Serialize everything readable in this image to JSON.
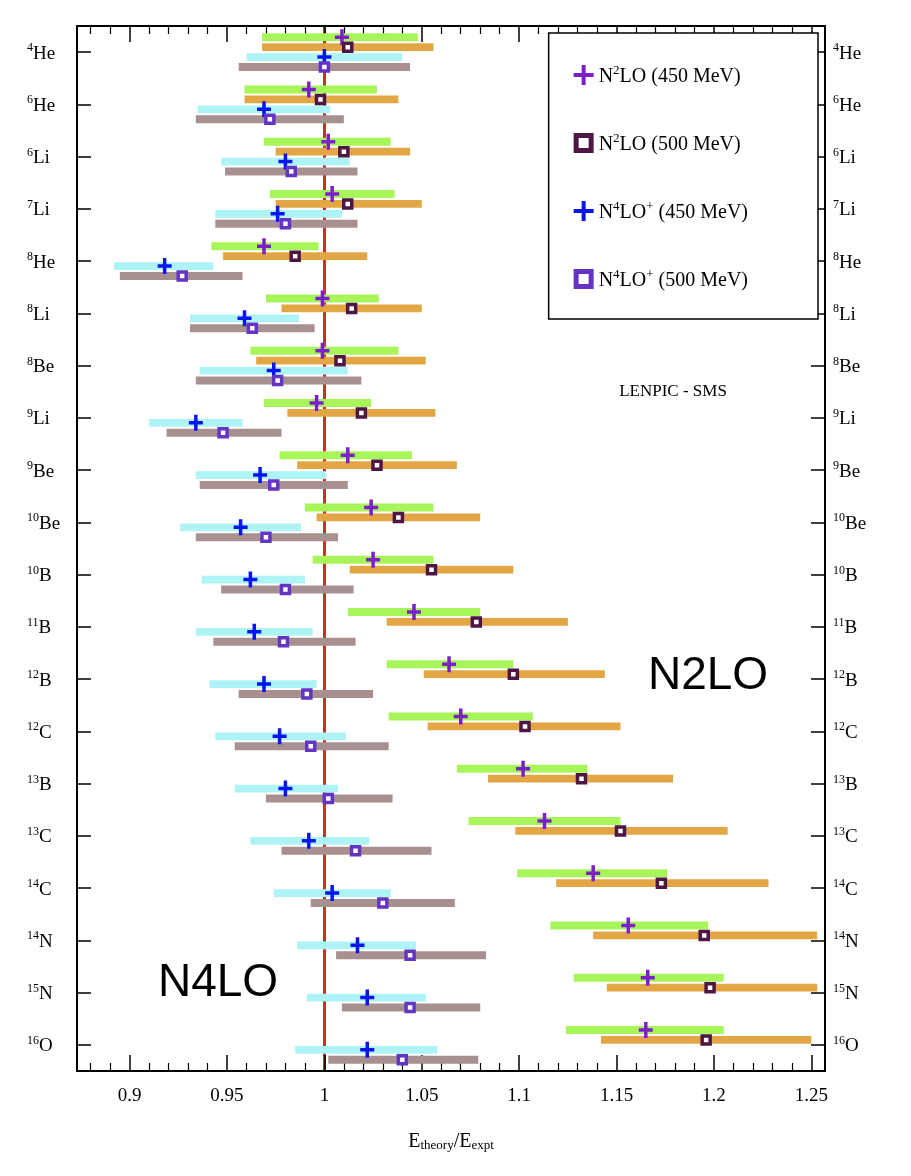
{
  "chart_data": {
    "type": "scatter",
    "orientation": "horizontal",
    "categories": [
      "$^{4}$He",
      "$^{6}$He",
      "$^{6}$Li",
      "$^{7}$Li",
      "$^{8}$He",
      "$^{8}$Li",
      "$^{8}$Be",
      "$^{9}$Li",
      "$^{9}$Be",
      "$^{10}$Be",
      "$^{10}$B",
      "$^{11}$B",
      "$^{12}$B",
      "$^{12}$C",
      "$^{13}$B",
      "$^{13}$C",
      "$^{14}$C",
      "$^{14}$N",
      "$^{15}$N",
      "$^{16}$O"
    ],
    "y2_categories": [
      "$^{4}$He",
      "$^{6}$He",
      "$^{6}$Li",
      "$^{7}$Li",
      "$^{8}$He",
      "$^{8}$Li",
      "$^{8}$Be",
      "$^{9}$Li",
      "$^{9}$Be",
      "$^{10}$Be",
      "$^{10}$B",
      "$^{11}$B",
      "$^{12}$B",
      "$^{12}$C",
      "$^{13}$B",
      "$^{13}$C",
      "$^{14}$C",
      "$^{14}$N",
      "$^{15}$N",
      "$^{16}$O"
    ],
    "xlabel": "E$_{theory}$/E$_{expt}$",
    "xlim": [
      0.873,
      1.257
    ],
    "xticks": [
      {
        "value": 0.88,
        "label": null
      },
      {
        "value": 0.89,
        "label": null
      },
      0.9,
      {
        "value": 0.91,
        "label": null
      },
      {
        "value": 0.92,
        "label": null
      },
      {
        "value": 0.93,
        "label": null
      },
      {
        "value": 0.94,
        "label": null
      },
      0.95,
      {
        "value": 0.96,
        "label": null
      },
      {
        "value": 0.97,
        "label": null
      },
      {
        "value": 0.98,
        "label": null
      },
      {
        "value": 0.99,
        "label": null
      },
      1,
      {
        "value": 1.01,
        "label": null
      },
      {
        "value": 1.02,
        "label": null
      },
      {
        "value": 1.03,
        "label": null
      },
      {
        "value": 1.04,
        "label": null
      },
      1.05,
      {
        "value": 1.06,
        "label": null
      },
      {
        "value": 1.07,
        "label": null
      },
      {
        "value": 1.08,
        "label": null
      },
      {
        "value": 1.09,
        "label": null
      },
      1.1,
      {
        "value": 1.11,
        "label": null
      },
      {
        "value": 1.12,
        "label": null
      },
      {
        "value": 1.13,
        "label": null
      },
      {
        "value": 1.14,
        "label": null
      },
      1.15,
      {
        "value": 1.16,
        "label": null
      },
      {
        "value": 1.17,
        "label": null
      },
      {
        "value": 1.18,
        "label": null
      },
      {
        "value": 1.19,
        "label": null
      },
      1.2,
      {
        "value": 1.21,
        "label": null
      },
      {
        "value": 1.22,
        "label": null
      },
      {
        "value": 1.23,
        "label": null
      },
      {
        "value": 1.24,
        "label": null
      },
      1.25
    ],
    "ref_lines": [
      {
        "axis": "x",
        "value": 1,
        "color": "#c8302a"
      }
    ],
    "legend": "top right",
    "annotations": [
      "LENPIC - SMS",
      "N2LO",
      "N4LO"
    ],
    "series": [
      {
        "type": "bar",
        "color": "#a8f55a",
        "base": [
          0.968,
          0.959,
          0.969,
          0.972,
          0.942,
          0.97,
          0.962,
          0.969,
          0.977,
          0.99,
          0.994,
          1.012,
          1.032,
          1.033,
          1.068,
          1.074,
          1.099,
          1.116,
          1.128,
          1.124
        ],
        "values": [
          0.08,
          0.068,
          0.065,
          0.064,
          0.055,
          0.058,
          0.076,
          0.055,
          0.068,
          0.066,
          0.062,
          0.068,
          0.065,
          0.074,
          0.067,
          0.078,
          0.077,
          0.081,
          0.077,
          0.081
        ]
      },
      {
        "type": "bar",
        "color": "#e2a744",
        "base": [
          0.968,
          0.959,
          0.975,
          0.975,
          0.948,
          0.978,
          0.965,
          0.981,
          0.986,
          0.996,
          1.013,
          1.032,
          1.051,
          1.053,
          1.084,
          1.098,
          1.119,
          1.138,
          1.145,
          1.142
        ],
        "values": [
          0.088,
          0.079,
          0.069,
          0.075,
          0.074,
          0.072,
          0.087,
          0.076,
          0.082,
          0.084,
          0.084,
          0.093,
          0.093,
          0.099,
          0.095,
          0.109,
          0.109,
          0.115,
          0.108,
          0.108
        ]
      },
      {
        "type": "bar",
        "color": "#aef4f6",
        "base": [
          0.96,
          0.935,
          0.947,
          0.944,
          0.892,
          0.931,
          0.936,
          0.91,
          0.934,
          0.926,
          0.937,
          0.934,
          0.941,
          0.944,
          0.954,
          0.962,
          0.974,
          0.986,
          0.991,
          0.985
        ],
        "values": [
          0.08,
          0.068,
          0.066,
          0.065,
          0.051,
          0.056,
          0.076,
          0.048,
          0.067,
          0.062,
          0.053,
          0.06,
          0.055,
          0.067,
          0.053,
          0.061,
          0.06,
          0.061,
          0.061,
          0.073
        ]
      },
      {
        "type": "bar",
        "color": "#a99090",
        "base": [
          0.956,
          0.934,
          0.949,
          0.944,
          0.895,
          0.931,
          0.934,
          0.919,
          0.936,
          0.934,
          0.947,
          0.943,
          0.956,
          0.954,
          0.97,
          0.978,
          0.993,
          1.006,
          1.009,
          1.002
        ],
        "values": [
          0.088,
          0.076,
          0.068,
          0.073,
          0.063,
          0.064,
          0.085,
          0.059,
          0.076,
          0.073,
          0.068,
          0.073,
          0.069,
          0.079,
          0.065,
          0.077,
          0.074,
          0.077,
          0.071,
          0.077
        ]
      },
      {
        "type": "scatter",
        "name": "N$^{2}$LO (450 MeV)",
        "color": "#7b1fcc",
        "marker": "cross",
        "values": [
          1.009,
          0.992,
          1.002,
          1.004,
          0.969,
          0.999,
          0.999,
          0.996,
          1.012,
          1.024,
          1.025,
          1.046,
          1.064,
          1.07,
          1.102,
          1.113,
          1.138,
          1.156,
          1.166,
          1.165
        ]
      },
      {
        "type": "scatter",
        "name": "N$^{2}$LO (500 MeV)",
        "color": "#4e1645",
        "marker": "square",
        "values": [
          1.012,
          0.998,
          1.01,
          1.012,
          0.985,
          1.014,
          1.008,
          1.019,
          1.027,
          1.038,
          1.055,
          1.078,
          1.097,
          1.103,
          1.132,
          1.152,
          1.173,
          1.195,
          1.198,
          1.196
        ]
      },
      {
        "type": "scatter",
        "name": "N$^{4}$LO$^{+}$ (450 MeV)",
        "color": "#0a14f0",
        "marker": "cross",
        "values": [
          1.0,
          0.969,
          0.98,
          0.976,
          0.918,
          0.959,
          0.974,
          0.934,
          0.967,
          0.957,
          0.962,
          0.964,
          0.969,
          0.977,
          0.98,
          0.992,
          1.004,
          1.017,
          1.022,
          1.022
        ]
      },
      {
        "type": "scatter",
        "name": "N$^{4}$LO$^{+}$ (500 MeV)",
        "color": "#6434c4",
        "marker": "square",
        "values": [
          1.0,
          0.972,
          0.983,
          0.98,
          0.927,
          0.963,
          0.976,
          0.948,
          0.974,
          0.97,
          0.98,
          0.979,
          0.991,
          0.993,
          1.002,
          1.016,
          1.03,
          1.044,
          1.044,
          1.04
        ]
      }
    ]
  }
}
